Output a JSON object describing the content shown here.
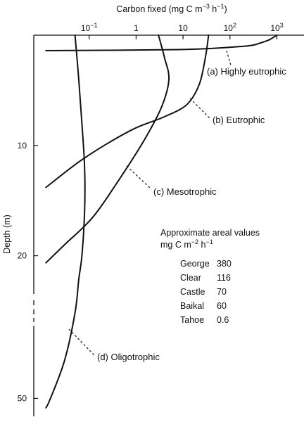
{
  "chart_data": {
    "type": "line",
    "title": "",
    "xlabel": "Carbon fixed (mg C m⁻³ h⁻¹)",
    "ylabel": "Depth (m)",
    "x_scale": "log",
    "xlim": [
      0.01,
      1000
    ],
    "x_ticks": [
      {
        "value": 0.1,
        "base": "10",
        "exp": "−1"
      },
      {
        "value": 1,
        "base": "1",
        "exp": ""
      },
      {
        "value": 10,
        "base": "10",
        "exp": ""
      },
      {
        "value": 100,
        "base": "10",
        "exp": "2"
      },
      {
        "value": 1000,
        "base": "10",
        "exp": "3"
      }
    ],
    "y_axis": "depth, increasing downward; scale changes after 20 m (broken axis)",
    "y_ticks": [
      10,
      20,
      50
    ],
    "series": [
      {
        "name": "(a) Highly eutrophic",
        "points": [
          [
            0.012,
            1.4
          ],
          [
            10,
            1.3
          ],
          [
            200,
            1.0
          ],
          [
            450,
            0.7
          ],
          [
            700,
            0.4
          ],
          [
            1000,
            0
          ]
        ]
      },
      {
        "name": "(b) Eutrophic",
        "points": [
          [
            35,
            0
          ],
          [
            30,
            2
          ],
          [
            22,
            4.5
          ],
          [
            12,
            6.3
          ],
          [
            4,
            7.4
          ],
          [
            1,
            8.4
          ],
          [
            0.25,
            9.8
          ],
          [
            0.06,
            11.5
          ],
          [
            0.012,
            13.8
          ]
        ]
      },
      {
        "name": "(c) Mesotrophic",
        "points": [
          [
            3,
            0
          ],
          [
            4,
            2
          ],
          [
            5,
            4
          ],
          [
            3.5,
            6.5
          ],
          [
            1.5,
            9.5
          ],
          [
            0.45,
            13
          ],
          [
            0.12,
            16.5
          ],
          [
            0.03,
            19
          ],
          [
            0.012,
            21.5
          ]
        ]
      },
      {
        "name": "(d) Oligotrophic",
        "points": [
          [
            0.05,
            0
          ],
          [
            0.06,
            4
          ],
          [
            0.07,
            8
          ],
          [
            0.08,
            12
          ],
          [
            0.08,
            16
          ],
          [
            0.07,
            20
          ],
          [
            0.06,
            25
          ],
          [
            0.05,
            32
          ],
          [
            0.03,
            42
          ],
          [
            0.015,
            50
          ],
          [
            0.012,
            52
          ]
        ]
      }
    ],
    "annotations": {
      "heading": "Approximate areal values",
      "units": "mg C m⁻² h⁻¹",
      "rows": [
        {
          "lake": "George",
          "value": "380"
        },
        {
          "lake": "Clear",
          "value": "116"
        },
        {
          "lake": "Castle",
          "value": "70"
        },
        {
          "lake": "Baikal",
          "value": "60"
        },
        {
          "lake": "Tahoe",
          "value": "0.6"
        }
      ]
    }
  }
}
